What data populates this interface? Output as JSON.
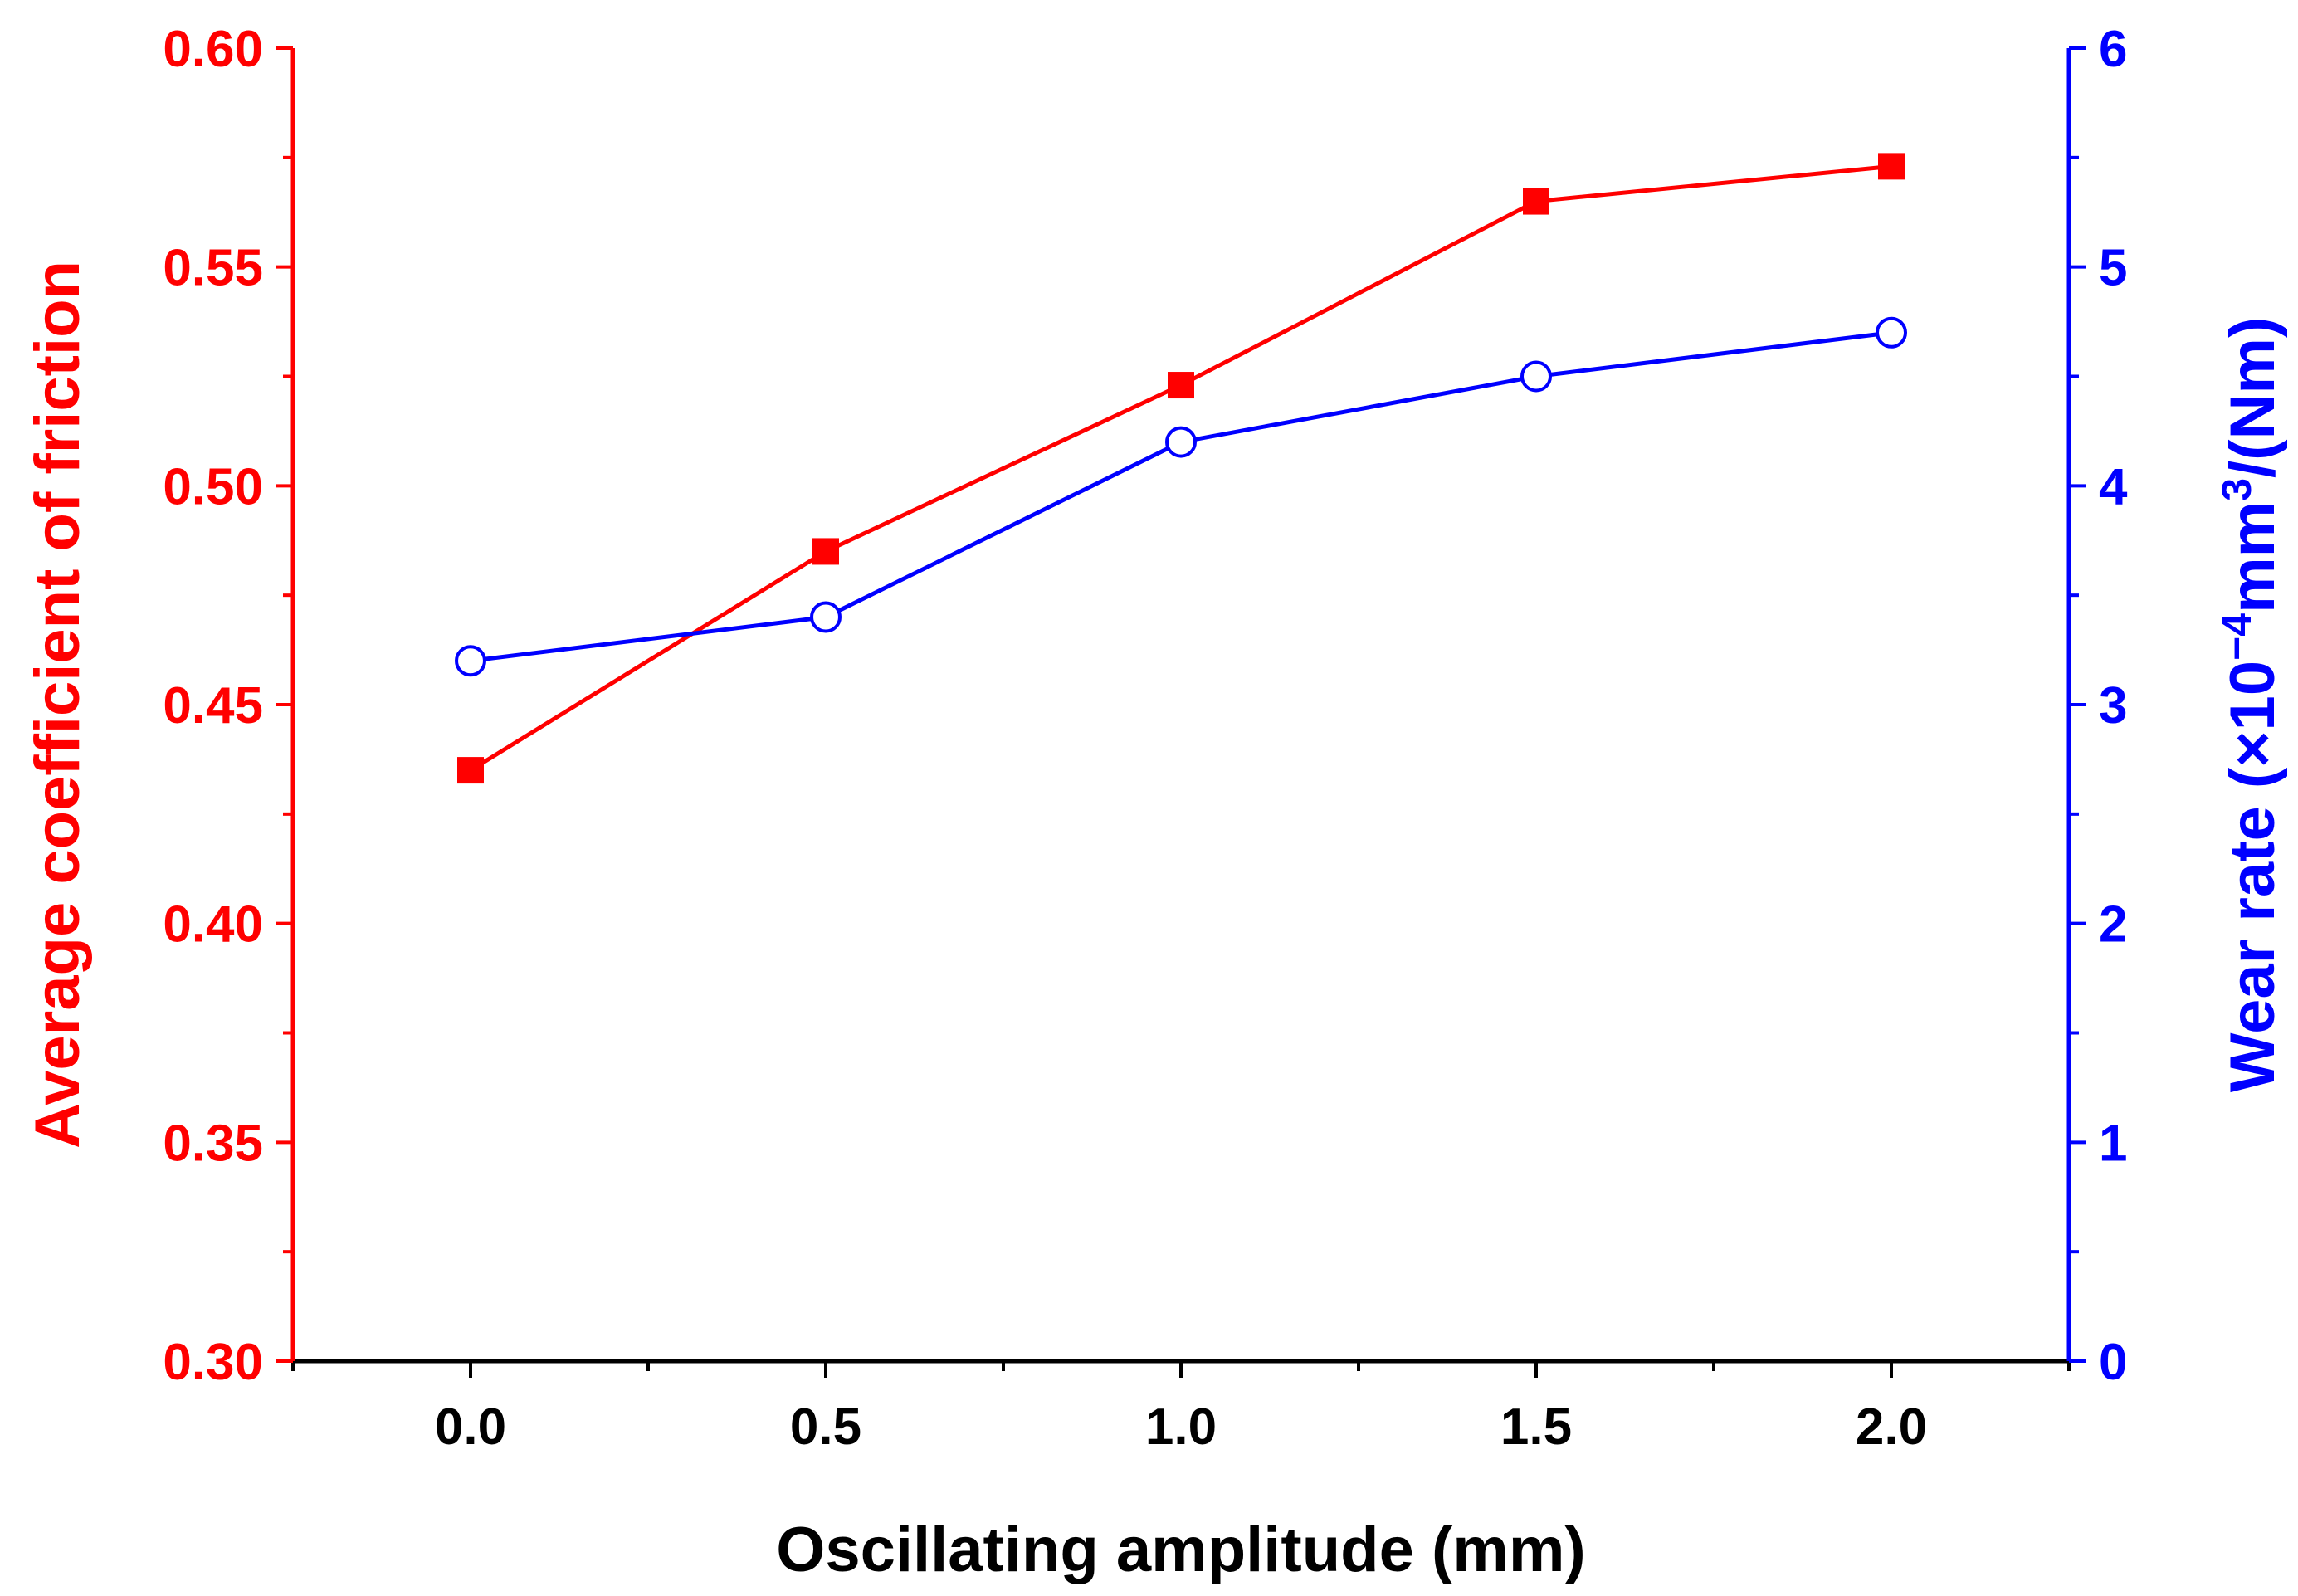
{
  "chart_data": {
    "type": "line",
    "title": "",
    "xlabel": "Oscillating amplitude (mm)",
    "ylabel_left": "Average coefficient of friction",
    "ylabel_right": {
      "prefix": "Wear rate (×10",
      "exp1": "−4",
      "middle": "mm",
      "exp2": "3",
      "suffix": "/(Nm)"
    },
    "xlim": [
      -0.25,
      2.25
    ],
    "ylim_left": [
      0.3,
      0.6
    ],
    "ylim_right": [
      0,
      6
    ],
    "x_ticks": [
      "0.0",
      "0.5",
      "1.0",
      "1.5",
      "2.0"
    ],
    "y_left_ticks": [
      "0.30",
      "0.35",
      "0.40",
      "0.45",
      "0.50",
      "0.55",
      "0.60"
    ],
    "y_right_ticks": [
      "0",
      "1",
      "2",
      "3",
      "4",
      "5",
      "6"
    ],
    "grid": false,
    "series": [
      {
        "name": "Average coefficient of friction",
        "axis": "left",
        "color": "#ff0000",
        "marker": "filled-square",
        "x": [
          0.0,
          0.5,
          1.0,
          1.5,
          2.0
        ],
        "values": [
          0.435,
          0.485,
          0.523,
          0.565,
          0.573
        ]
      },
      {
        "name": "Wear rate",
        "axis": "right",
        "color": "#0000ff",
        "marker": "open-circle",
        "x": [
          0.0,
          0.5,
          1.0,
          1.5,
          2.0
        ],
        "values": [
          3.2,
          3.4,
          4.2,
          4.5,
          4.7
        ]
      }
    ]
  }
}
